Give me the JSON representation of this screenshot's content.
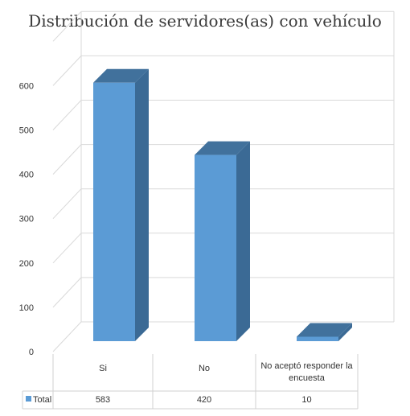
{
  "chart_data": {
    "type": "bar",
    "title": "Distribución de servidores(as) con vehículo",
    "categories": [
      "Si",
      "No",
      "No aceptó responder la encuesta"
    ],
    "category_lines": [
      [
        "Si"
      ],
      [
        "No"
      ],
      [
        "No aceptó responder la",
        "encuesta"
      ]
    ],
    "series": [
      {
        "name": "Total",
        "values": [
          583,
          420,
          10
        ],
        "value_labels": [
          "583",
          "420",
          "10"
        ]
      }
    ],
    "ylim": [
      0,
      700
    ],
    "yticks": [
      0,
      100,
      200,
      300,
      400,
      500,
      600
    ],
    "grid": true,
    "legend": "data-table",
    "style": "3d-column"
  },
  "colors": {
    "bar_front": "#5b9bd5",
    "bar_side": "#3b6a95",
    "bar_top": "#41719c",
    "grid": "#d9d9d9",
    "table_border": "#d0d0d0"
  }
}
